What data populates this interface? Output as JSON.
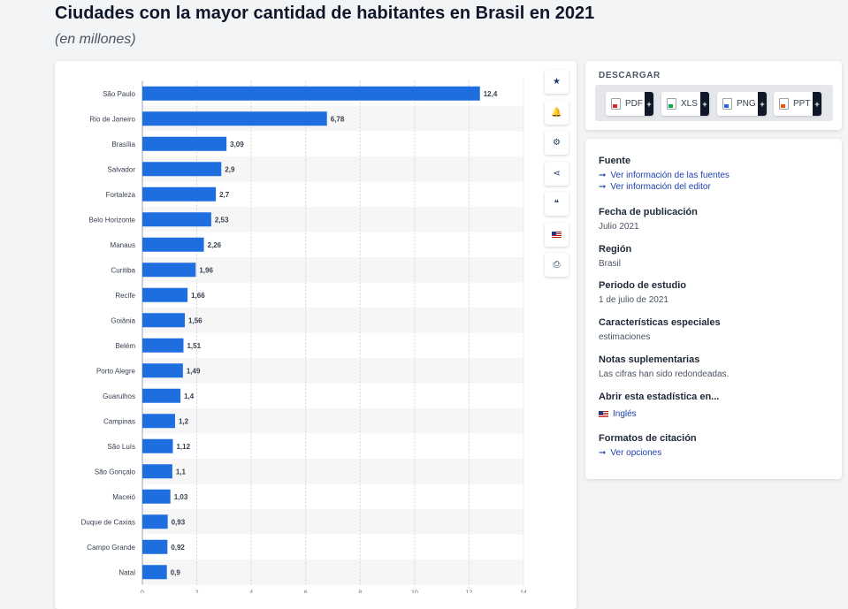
{
  "header": {
    "title": "Ciudades con la mayor cantidad de habitantes en Brasil en 2021",
    "subtitle": "(en millones)"
  },
  "toolbar": {
    "buttons": [
      {
        "name": "favorite",
        "icon": "star-icon",
        "glyph": "★"
      },
      {
        "name": "notification",
        "icon": "bell-icon",
        "glyph": "🔔"
      },
      {
        "name": "settings",
        "icon": "gear-icon",
        "glyph": "⚙"
      },
      {
        "name": "share",
        "icon": "share-icon",
        "glyph": "⋖"
      },
      {
        "name": "cite",
        "icon": "quote-icon",
        "glyph": "❝"
      },
      {
        "name": "language",
        "icon": "uk-flag-icon",
        "glyph": ""
      },
      {
        "name": "print",
        "icon": "printer-icon",
        "glyph": "⎙"
      }
    ]
  },
  "download": {
    "title": "DESCARGAR",
    "formats": [
      {
        "label": "PDF",
        "plus": "+",
        "icon": "pdf-file-icon"
      },
      {
        "label": "XLS",
        "plus": "+",
        "icon": "xls-file-icon"
      },
      {
        "label": "PNG",
        "plus": "+",
        "icon": "png-file-icon"
      },
      {
        "label": "PPT",
        "plus": "+",
        "icon": "ppt-file-icon"
      }
    ]
  },
  "info": {
    "source_title": "Fuente",
    "source_links": [
      "Ver información de las fuentes",
      "Ver información del editor"
    ],
    "pubdate_title": "Fecha de publicación",
    "pubdate_value": "Julio 2021",
    "region_title": "Región",
    "region_value": "Brasil",
    "period_title": "Periodo de estudio",
    "period_value": "1 de julio de 2021",
    "features_title": "Características especiales",
    "features_value": "estimaciones",
    "notes_title": "Notas suplementarias",
    "notes_value": "Las cifras han sido redondeadas.",
    "open_title": "Abrir esta estadística en...",
    "open_link": "Inglés",
    "citation_title": "Formatos de citación",
    "citation_link": "Ver opciones"
  },
  "colors": {
    "bar": "#1f6ee0",
    "row_stripe": "#f6f6f6",
    "link": "#1e40af"
  },
  "chart_data": {
    "type": "bar",
    "orientation": "horizontal",
    "title": "Ciudades con la mayor cantidad de habitantes en Brasil en 2021",
    "subtitle": "(en millones)",
    "categories": [
      "São Paulo",
      "Rio de Janeiro",
      "Brasília",
      "Salvador",
      "Fortaleza",
      "Belo Horizonte",
      "Manaus",
      "Curitiba",
      "Recife",
      "Goiânia",
      "Belém",
      "Porto Alegre",
      "Guarulhos",
      "Campinas",
      "São Luís",
      "São Gonçalo",
      "Maceió",
      "Duque de Caxias",
      "Campo Grande",
      "Natal"
    ],
    "values": [
      12.4,
      6.78,
      3.09,
      2.9,
      2.7,
      2.53,
      2.26,
      1.96,
      1.66,
      1.56,
      1.51,
      1.49,
      1.4,
      1.2,
      1.12,
      1.1,
      1.03,
      0.93,
      0.92,
      0.9
    ],
    "value_labels": [
      "12,4",
      "6,78",
      "3,09",
      "2,9",
      "2,7",
      "2,53",
      "2,26",
      "1,96",
      "1,66",
      "1,56",
      "1,51",
      "1,49",
      "1,4",
      "1,2",
      "1,12",
      "1,1",
      "1,03",
      "0,93",
      "0,92",
      "0,9"
    ],
    "xlim": [
      0,
      14
    ],
    "xticks": [
      0,
      2,
      4,
      6,
      8,
      10,
      12,
      14
    ],
    "xlabel": "",
    "ylabel": "",
    "grid": true
  }
}
